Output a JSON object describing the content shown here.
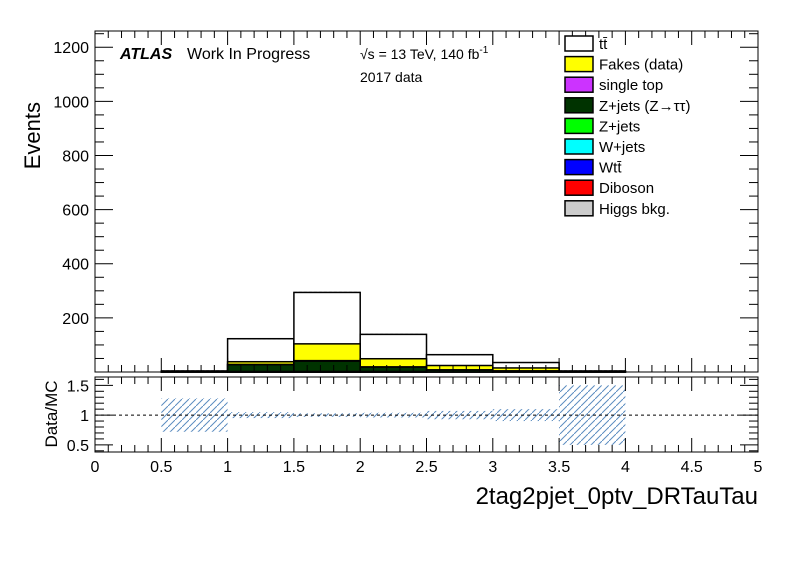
{
  "chart_data": [
    {
      "type": "stacked-histogram",
      "ylabel": "Events",
      "xlim": [
        0,
        5
      ],
      "ylim": [
        0,
        1260
      ],
      "yticks": [
        {
          "value": 200,
          "label": "200"
        },
        {
          "value": 400,
          "label": "400"
        },
        {
          "value": 600,
          "label": "600"
        },
        {
          "value": 800,
          "label": "800"
        },
        {
          "value": 1000,
          "label": "1000"
        },
        {
          "value": 1200,
          "label": "1200"
        }
      ],
      "annotations": {
        "atlas": "ATLAS",
        "status": "Work In Progress",
        "energy": "√s = 13 TeV, 140 fb",
        "energy_sup": "-1",
        "dataset": "2017 data"
      },
      "bin_edges": [
        0,
        0.5,
        1,
        1.5,
        2,
        2.5,
        3,
        3.5,
        4,
        4.5,
        5
      ],
      "series": [
        {
          "name": "tt̄",
          "color": "#ffffff",
          "values": [
            0,
            2,
            85,
            190,
            90,
            40,
            20,
            2,
            0,
            0
          ]
        },
        {
          "name": "Fakes (data)",
          "color": "#ffff00",
          "values": [
            0,
            1,
            10,
            62,
            30,
            16,
            11,
            1,
            0,
            0
          ]
        },
        {
          "name": "single top",
          "color": "#cc33ff",
          "values": [
            0,
            0,
            1,
            2,
            1,
            1,
            0,
            0,
            0,
            0
          ]
        },
        {
          "name": "Z+jets (Z→ττ)",
          "color": "#003300",
          "values": [
            0,
            1,
            25,
            38,
            16,
            7,
            4,
            1,
            0,
            0
          ]
        },
        {
          "name": "Z+jets",
          "color": "#00ff00",
          "values": [
            0,
            0,
            1,
            1,
            1,
            0,
            0,
            0,
            0,
            0
          ]
        },
        {
          "name": "W+jets",
          "color": "#00ffff",
          "values": [
            0,
            0,
            1,
            1,
            1,
            0,
            0,
            0,
            0,
            0
          ]
        },
        {
          "name": "Wtt̄",
          "color": "#0000ff",
          "values": [
            0,
            0,
            0,
            0,
            0,
            0,
            0,
            0,
            0,
            0
          ]
        },
        {
          "name": "Diboson",
          "color": "#ff0000",
          "values": [
            0,
            0,
            0,
            0,
            0,
            0,
            0,
            0,
            0,
            0
          ]
        },
        {
          "name": "Higgs bkg.",
          "color": "#cccccc",
          "values": [
            0,
            0,
            0,
            0,
            0,
            0,
            0,
            0,
            0,
            0
          ]
        }
      ],
      "legend_position": "top-right"
    },
    {
      "type": "ratio",
      "ylabel": "Data/MC",
      "xlabel": "2tag2pjet_0ptv_DRTauTau",
      "xlim": [
        0,
        5
      ],
      "ylim": [
        0.38,
        1.64
      ],
      "reference_line": 1,
      "xticks": [
        {
          "value": 0,
          "label": "0"
        },
        {
          "value": 0.5,
          "label": "0.5"
        },
        {
          "value": 1,
          "label": "1"
        },
        {
          "value": 1.5,
          "label": "1.5"
        },
        {
          "value": 2,
          "label": "2"
        },
        {
          "value": 2.5,
          "label": "2.5"
        },
        {
          "value": 3,
          "label": "3"
        },
        {
          "value": 3.5,
          "label": "3.5"
        },
        {
          "value": 4,
          "label": "4"
        },
        {
          "value": 4.5,
          "label": "4.5"
        },
        {
          "value": 5,
          "label": "5"
        }
      ],
      "yticks": [
        {
          "value": 0.5,
          "label": "0.5"
        },
        {
          "value": 1,
          "label": "1"
        },
        {
          "value": 1.5,
          "label": "1.5"
        }
      ],
      "uncertainty_bands": [
        {
          "x0": 0.5,
          "x1": 1.0,
          "low": 0.72,
          "high": 1.28
        },
        {
          "x0": 1.0,
          "x1": 1.5,
          "low": 0.95,
          "high": 1.05
        },
        {
          "x0": 1.5,
          "x1": 2.0,
          "low": 0.97,
          "high": 1.03
        },
        {
          "x0": 2.0,
          "x1": 2.5,
          "low": 0.96,
          "high": 1.04
        },
        {
          "x0": 2.5,
          "x1": 3.0,
          "low": 0.93,
          "high": 1.07
        },
        {
          "x0": 3.0,
          "x1": 3.5,
          "low": 0.9,
          "high": 1.1
        },
        {
          "x0": 3.5,
          "x1": 4.0,
          "low": 0.5,
          "high": 1.5
        }
      ]
    }
  ]
}
